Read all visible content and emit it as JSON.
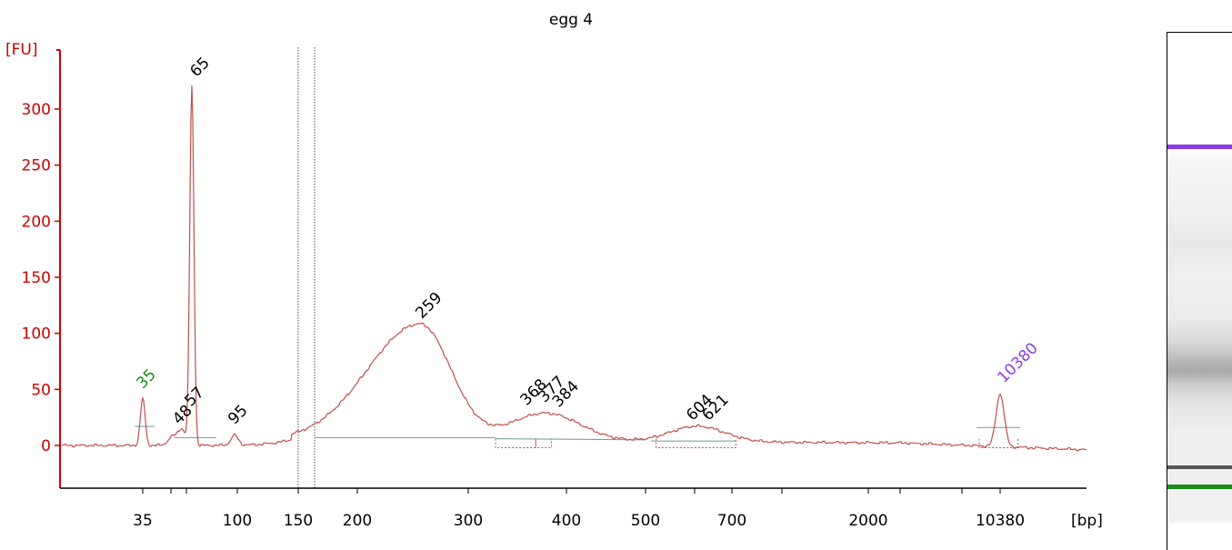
{
  "chart_data": {
    "type": "line",
    "title": "egg 4",
    "ylabel": "[FU]",
    "xlabel": "[bp]",
    "ylim": [
      -40,
      340
    ],
    "y_ticks": [
      0,
      50,
      100,
      150,
      200,
      250,
      300
    ],
    "x_tick_labels": [
      "35",
      "100",
      "150",
      "200",
      "300",
      "400",
      "500",
      "700",
      "2000",
      "10380"
    ],
    "x_scale": "log-like (electropherogram size axis)",
    "colors": {
      "trace": "#c0504d",
      "y_axis": "#d00000",
      "lower_marker": "#1a8a1a",
      "upper_marker": "#8a3ce6",
      "baseline": "#6f9a9a"
    },
    "peak_labels": [
      {
        "label": "35",
        "x": 35,
        "y": 42,
        "color": "lower_marker"
      },
      {
        "label": "48",
        "x": 48,
        "y": 10
      },
      {
        "label": "57",
        "x": 57,
        "y": 18
      },
      {
        "label": "65",
        "x": 65,
        "y": 320
      },
      {
        "label": "95",
        "x": 95,
        "y": 10
      },
      {
        "label": "259",
        "x": 259,
        "y": 106
      },
      {
        "label": "368",
        "x": 368,
        "y": 27
      },
      {
        "label": "377",
        "x": 377,
        "y": 28
      },
      {
        "label": "384",
        "x": 384,
        "y": 27
      },
      {
        "label": "604",
        "x": 604,
        "y": 15
      },
      {
        "label": "621",
        "x": 621,
        "y": 15
      },
      {
        "label": "10380",
        "x": 10380,
        "y": 47,
        "color": "upper_marker"
      }
    ],
    "dashed_markers": [
      150,
      160
    ]
  },
  "gel": {
    "bands": [
      {
        "name": "upper-marker-band",
        "color": "#8a3ce6"
      },
      {
        "name": "dark-band",
        "color": "#555555"
      },
      {
        "name": "lower-marker-band",
        "color": "#1a8a1a"
      }
    ]
  }
}
